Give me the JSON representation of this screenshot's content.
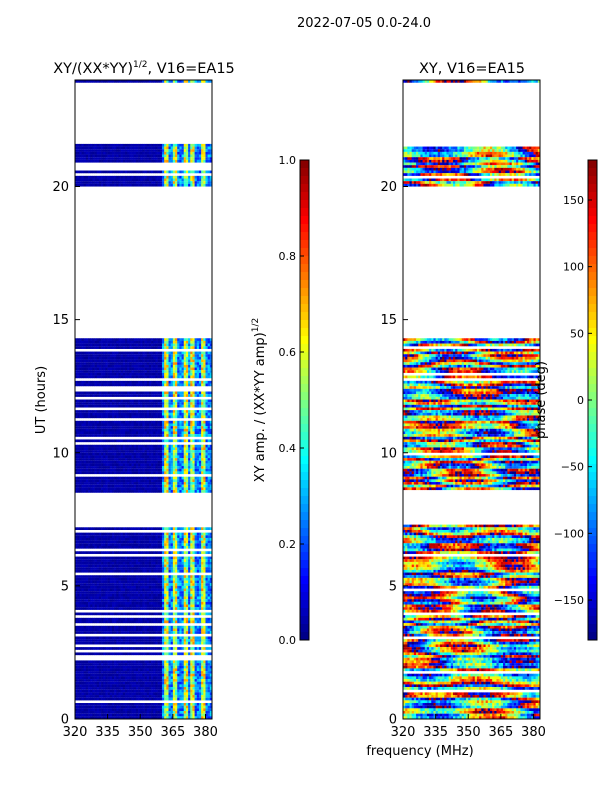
{
  "suptitle": "2022-07-05 0.0-24.0",
  "shared_xlabel": "frequency (MHz)",
  "chart_data": [
    {
      "type": "heatmap",
      "title": "XY/(XX*YY)",
      "title_sup": "1/2",
      "title_suffix": ", V16=EA15",
      "xlabel": "",
      "ylabel": "UT (hours)",
      "xlim": [
        320,
        383
      ],
      "ylim": [
        0,
        24
      ],
      "xticks": [
        "320",
        "335",
        "350",
        "365",
        "380"
      ],
      "xtick_values": [
        320,
        335,
        350,
        365,
        380
      ],
      "yticks": [
        "0",
        "5",
        "10",
        "15",
        "20"
      ],
      "ytick_values": [
        0,
        5,
        10,
        15,
        20
      ],
      "empty_ut_ranges": [
        [
          21.6,
          23.9
        ],
        [
          14.35,
          20.0
        ],
        [
          7.3,
          8.45
        ]
      ],
      "active_band_mhz": [
        360,
        382
      ],
      "stripe_columns_mhz": [
        362,
        366,
        371,
        374,
        379
      ],
      "colorbar": {
        "label": "XY amp. / (XX*YY amp)",
        "label_sup": "1/2",
        "range": [
          0.0,
          1.0
        ],
        "ticks": [
          "0.0",
          "0.2",
          "0.4",
          "0.6",
          "0.8",
          "1.0"
        ],
        "tick_values": [
          0.0,
          0.2,
          0.4,
          0.6,
          0.8,
          1.0
        ],
        "colormap": "jet"
      }
    },
    {
      "type": "heatmap",
      "title": "XY, V16=EA15",
      "xlabel": "frequency (MHz)",
      "ylabel": "",
      "xlim": [
        320,
        383
      ],
      "ylim": [
        0,
        24
      ],
      "xticks": [
        "320",
        "335",
        "350",
        "365",
        "380"
      ],
      "xtick_values": [
        320,
        335,
        350,
        365,
        380
      ],
      "yticks": [
        "0",
        "5",
        "10",
        "15",
        "20"
      ],
      "ytick_values": [
        0,
        5,
        10,
        15,
        20
      ],
      "empty_ut_ranges": [
        [
          21.6,
          23.9
        ],
        [
          14.35,
          20.0
        ],
        [
          7.3,
          8.45
        ]
      ],
      "colorbar": {
        "label": "phase (deg)",
        "range": [
          -180,
          180
        ],
        "ticks": [
          "−150",
          "−100",
          "−50",
          "0",
          "50",
          "100",
          "150"
        ],
        "tick_values": [
          -150,
          -100,
          -50,
          0,
          50,
          100,
          150
        ],
        "colormap": "jet"
      }
    }
  ]
}
